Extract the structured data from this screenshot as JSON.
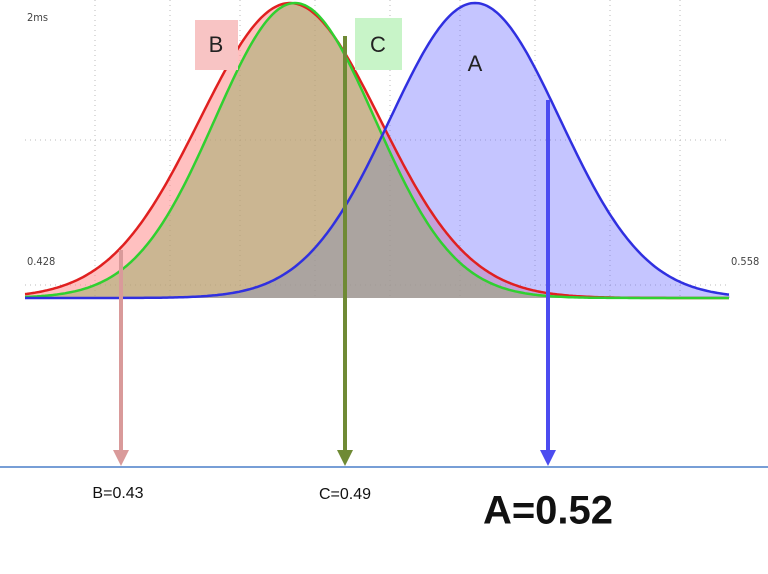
{
  "axis": {
    "unit_label": "2ms",
    "left_label": "0.428",
    "right_label": "0.558"
  },
  "curves": [
    {
      "label": "B"
    },
    {
      "label": "C"
    },
    {
      "label": "A"
    }
  ],
  "results": [
    {
      "label": "B=0.43"
    },
    {
      "label": "C=0.49"
    },
    {
      "label": "A=0.52"
    }
  ]
}
